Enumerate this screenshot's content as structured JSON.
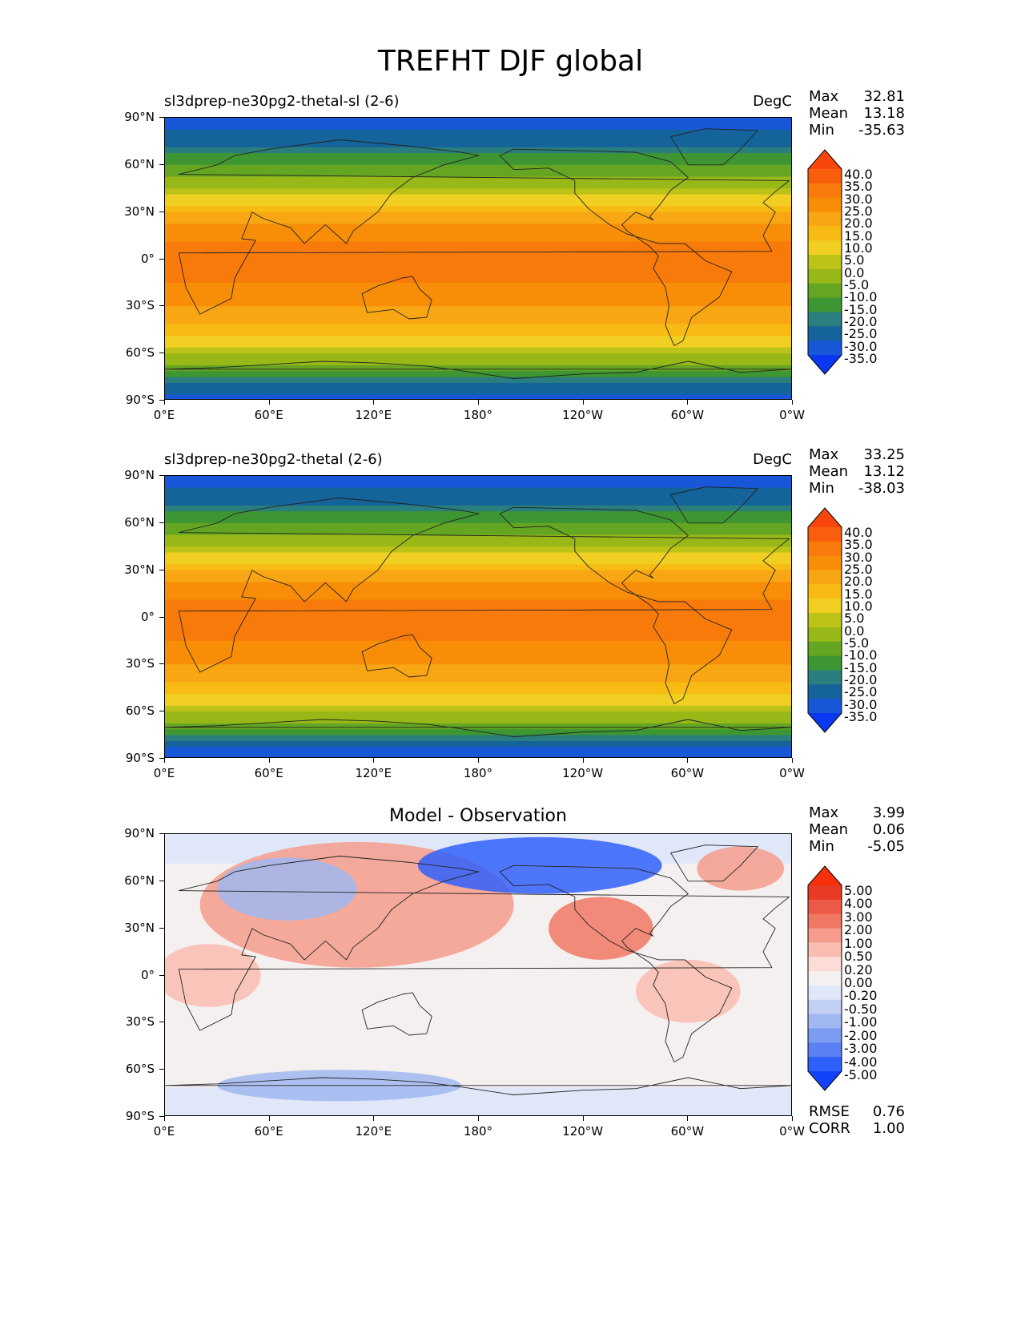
{
  "figure_title": "TREFHT DJF global",
  "colors": {
    "abs_levels": [
      "#0a38f0",
      "#1858d8",
      "#14639a",
      "#2a7e7e",
      "#3e9632",
      "#64a622",
      "#98b818",
      "#bcc318",
      "#f0ce22",
      "#f8bb14",
      "#f8a614",
      "#f88e08",
      "#f87a0a",
      "#f85e0c",
      "#f8460c"
    ],
    "diff_levels": [
      "#1243fc",
      "#3060fb",
      "#5a80f4",
      "#7c9bf2",
      "#a0b7f0",
      "#c3d0f5",
      "#e0e7f8",
      "#f5f0f0",
      "#fbdcd6",
      "#f9bcb0",
      "#f59c8c",
      "#f07864",
      "#eb5a46",
      "#e83a24",
      "#f8300c"
    ],
    "frame": "#000000"
  },
  "panels": [
    {
      "title_left": "sl3dprep-ne30pg2-thetal-sl (2-6)",
      "title_center": "",
      "units": "DegC",
      "stats": [
        {
          "label": "Max",
          "value": "32.81"
        },
        {
          "label": "Mean",
          "value": "13.18"
        },
        {
          "label": "Min",
          "value": "-35.63"
        }
      ],
      "colorbar": [
        "40.0",
        "35.0",
        "30.0",
        "25.0",
        "20.0",
        "15.0",
        "10.0",
        "5.0",
        "0.0",
        "-5.0",
        "-10.0",
        "-15.0",
        "-20.0",
        "-25.0",
        "-30.0",
        "-35.0"
      ],
      "footer_stats": []
    },
    {
      "title_left": "sl3dprep-ne30pg2-thetal (2-6)",
      "title_center": "",
      "units": "DegC",
      "stats": [
        {
          "label": "Max",
          "value": "33.25"
        },
        {
          "label": "Mean",
          "value": "13.12"
        },
        {
          "label": "Min",
          "value": "-38.03"
        }
      ],
      "colorbar": [
        "40.0",
        "35.0",
        "30.0",
        "25.0",
        "20.0",
        "15.0",
        "10.0",
        "5.0",
        "0.0",
        "-5.0",
        "-10.0",
        "-15.0",
        "-20.0",
        "-25.0",
        "-30.0",
        "-35.0"
      ],
      "footer_stats": []
    },
    {
      "title_left": "",
      "title_center": "Model - Observation",
      "units": "",
      "stats": [
        {
          "label": "Max",
          "value": "3.99"
        },
        {
          "label": "Mean",
          "value": "0.06"
        },
        {
          "label": "Min",
          "value": "-5.05"
        }
      ],
      "colorbar": [
        "5.00",
        "4.00",
        "3.00",
        "2.00",
        "1.00",
        "0.50",
        "0.20",
        "0.00",
        "-0.20",
        "-0.50",
        "-1.00",
        "-2.00",
        "-3.00",
        "-4.00",
        "-5.00"
      ],
      "footer_stats": [
        {
          "label": "RMSE",
          "value": "0.76"
        },
        {
          "label": "CORR",
          "value": "1.00"
        }
      ]
    }
  ],
  "chart_data": [
    {
      "type": "heatmap",
      "title": "sl3dprep-ne30pg2-thetal-sl (2-6)",
      "units": "DegC",
      "x_ticks": [
        "0°E",
        "60°E",
        "120°E",
        "180°",
        "120°W",
        "60°W",
        "0°W"
      ],
      "y_ticks": [
        "90°N",
        "60°N",
        "30°N",
        "0°",
        "30°S",
        "60°S",
        "90°S"
      ],
      "xlim": [
        0,
        360
      ],
      "ylim": [
        -90,
        90
      ],
      "levels": [
        -35,
        -30,
        -25,
        -20,
        -15,
        -10,
        -5,
        0,
        5,
        10,
        15,
        20,
        25,
        30,
        35,
        40
      ],
      "colormap_extend": "both",
      "zonal_profile": {
        "lat": [
          90,
          75,
          60,
          45,
          30,
          15,
          0,
          -15,
          -30,
          -45,
          -60,
          -75,
          -90
        ],
        "value": [
          -27,
          -22,
          -10,
          0,
          14,
          24,
          27,
          25,
          20,
          12,
          2,
          -15,
          -30
        ]
      },
      "stats": {
        "max": 32.81,
        "mean": 13.18,
        "min": -35.63
      }
    },
    {
      "type": "heatmap",
      "title": "sl3dprep-ne30pg2-thetal (2-6)",
      "units": "DegC",
      "x_ticks": [
        "0°E",
        "60°E",
        "120°E",
        "180°",
        "120°W",
        "60°W",
        "0°W"
      ],
      "y_ticks": [
        "90°N",
        "60°N",
        "30°N",
        "0°",
        "30°S",
        "60°S",
        "90°S"
      ],
      "xlim": [
        0,
        360
      ],
      "ylim": [
        -90,
        90
      ],
      "levels": [
        -35,
        -30,
        -25,
        -20,
        -15,
        -10,
        -5,
        0,
        5,
        10,
        15,
        20,
        25,
        30,
        35,
        40
      ],
      "colormap_extend": "both",
      "zonal_profile": {
        "lat": [
          90,
          75,
          60,
          45,
          30,
          15,
          0,
          -15,
          -30,
          -45,
          -60,
          -75,
          -90
        ],
        "value": [
          -28,
          -22,
          -10,
          0,
          14,
          24,
          27,
          25,
          20,
          12,
          2,
          -16,
          -31
        ]
      },
      "stats": {
        "max": 33.25,
        "mean": 13.12,
        "min": -38.03
      }
    },
    {
      "type": "heatmap",
      "title": "Model - Observation",
      "x_ticks": [
        "0°E",
        "60°E",
        "120°E",
        "180°",
        "120°W",
        "60°W",
        "0°W"
      ],
      "y_ticks": [
        "90°N",
        "60°N",
        "30°N",
        "0°",
        "30°S",
        "60°S",
        "90°S"
      ],
      "xlim": [
        0,
        360
      ],
      "ylim": [
        -90,
        90
      ],
      "levels": [
        -5.0,
        -4.0,
        -3.0,
        -2.0,
        -1.0,
        -0.5,
        -0.2,
        0.0,
        0.2,
        0.5,
        1.0,
        2.0,
        3.0,
        4.0,
        5.0
      ],
      "colormap_extend": "both",
      "stats": {
        "max": 3.99,
        "mean": 0.06,
        "min": -5.05,
        "rmse": 0.76,
        "corr": 1.0
      }
    }
  ]
}
